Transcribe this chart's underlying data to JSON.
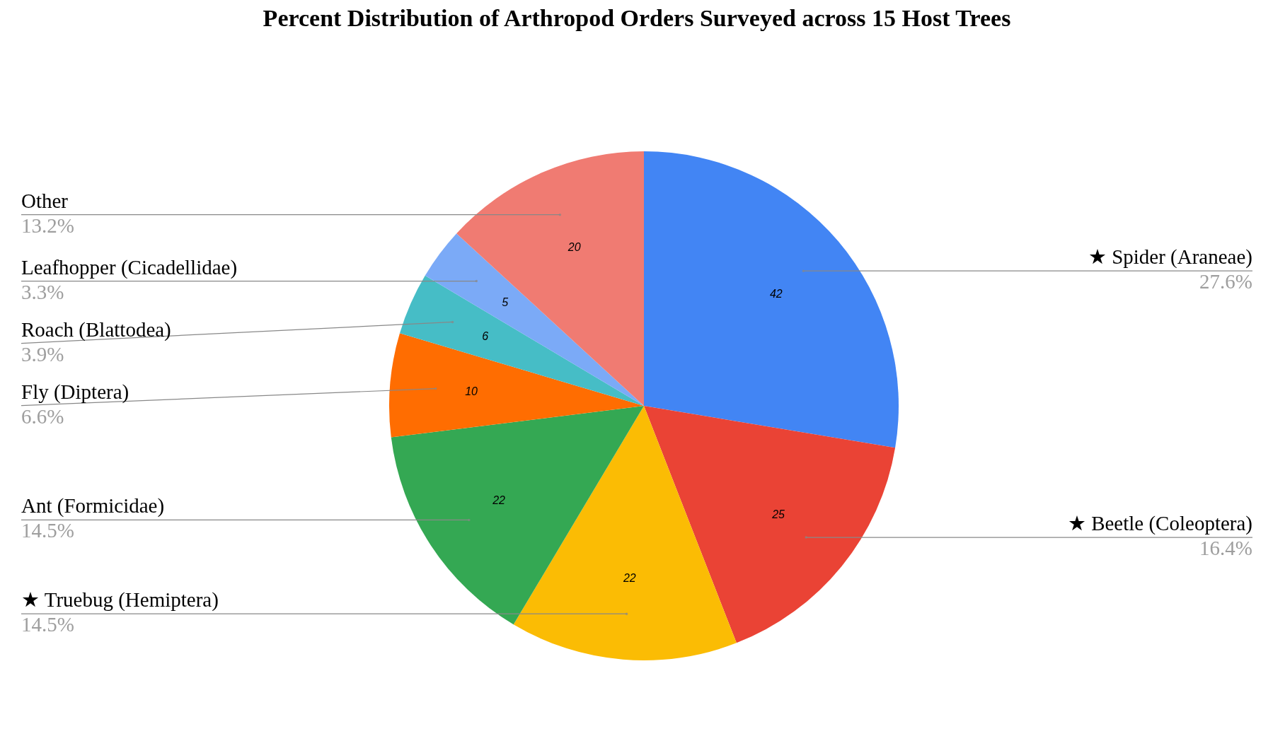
{
  "chart_data": {
    "type": "pie",
    "title": "Percent Distribution of Arthropod Orders Surveyed across 15 Host Trees",
    "categories": [
      "★ Spider (Araneae)",
      "★ Beetle (Coleoptera)",
      "★ Truebug (Hemiptera)",
      "Ant (Formicidae)",
      "Fly (Diptera)",
      "Roach (Blattodea)",
      "Leafhopper (Cicadellidae)",
      "Other"
    ],
    "values": [
      42,
      25,
      22,
      22,
      10,
      6,
      5,
      20
    ],
    "colors": [
      "#4285f4",
      "#ea4335",
      "#fbbc04",
      "#34a853",
      "#ff6d01",
      "#46bdc6",
      "#7baaf7",
      "#f07b72"
    ],
    "data_labels": true,
    "annotations": [
      "27.6%",
      "16.4%",
      "14.5%",
      "14.5%",
      "6.6%",
      "3.9%",
      "3.3%",
      "13.2%"
    ]
  }
}
